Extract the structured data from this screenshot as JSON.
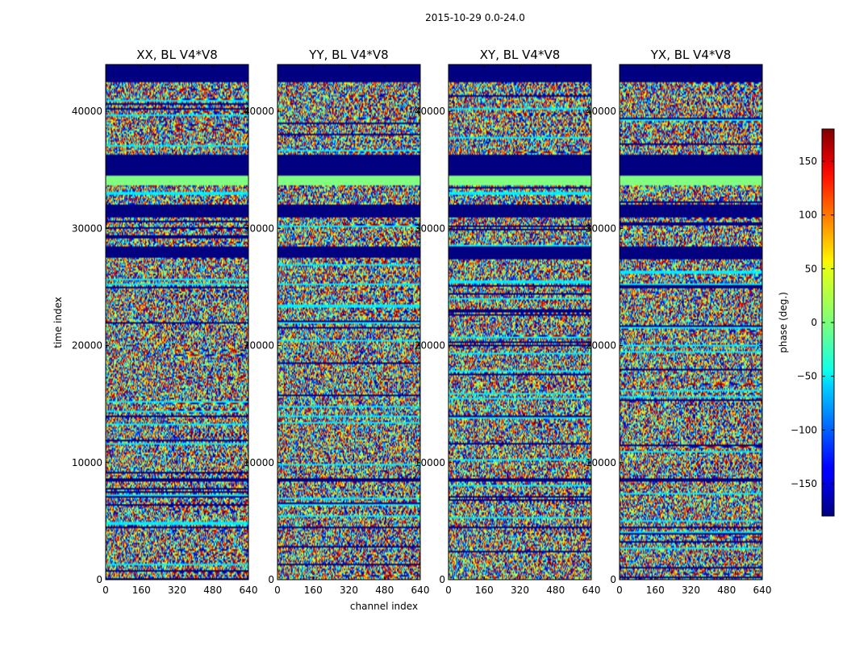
{
  "chart_data": {
    "type": "heatmap",
    "suptitle": "2015-10-29 0.0-24.0",
    "xlabel": "channel index",
    "ylabel": "time index",
    "xlim": [
      0,
      640
    ],
    "ylim": [
      0,
      44000
    ],
    "xticks": [
      0,
      160,
      320,
      480,
      640
    ],
    "yticks": [
      0,
      10000,
      20000,
      30000,
      40000
    ],
    "colormap": "jet",
    "colorbar": {
      "label": "phase (deg.)",
      "vmin": -180,
      "vmax": 180,
      "ticks": [
        150,
        100,
        50,
        0,
        -50,
        -100,
        -150
      ],
      "tick_labels": [
        "150",
        "100",
        "50",
        "0",
        "−50",
        "−100",
        "−150"
      ]
    },
    "panels": [
      {
        "title": "XX, BL V4*V8"
      },
      {
        "title": "YY, BL V4*V8"
      },
      {
        "title": "XY, BL V4*V8"
      },
      {
        "title": "YX, BL V4*V8"
      }
    ],
    "flagged_rows_time_index": [
      [
        42500,
        44000
      ],
      [
        34500,
        36300
      ],
      [
        31000,
        32000
      ],
      [
        27500,
        28400
      ],
      [
        4350,
        4550
      ],
      [
        8400,
        8600
      ]
    ],
    "zero_phase_rows_time_index": [
      [
        33700,
        34500
      ]
    ]
  }
}
